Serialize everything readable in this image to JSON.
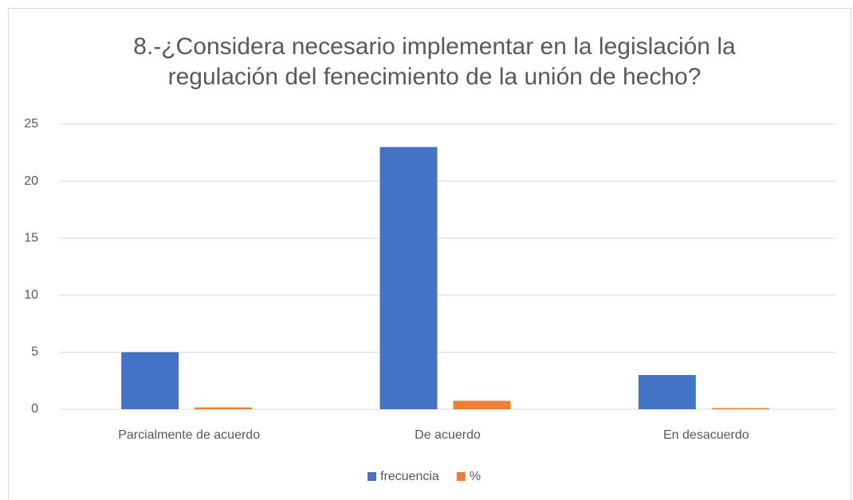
{
  "chart_data": {
    "type": "bar",
    "title": "8.-¿Considera necesario implementar en la legislación la regulación del fenecimiento de la unión de hecho?",
    "categories": [
      "Parcialmente de acuerdo",
      "De acuerdo",
      "En desacuerdo"
    ],
    "series": [
      {
        "name": "frecuencia",
        "color": "#4472c4",
        "values": [
          5,
          23,
          3
        ]
      },
      {
        "name": "%",
        "color": "#ed7d31",
        "values": [
          0.16,
          0.74,
          0.1
        ]
      }
    ],
    "ylim": [
      0,
      25
    ],
    "yticks": [
      0,
      5,
      10,
      15,
      20,
      25
    ],
    "grid": true,
    "legend": "bottom"
  }
}
